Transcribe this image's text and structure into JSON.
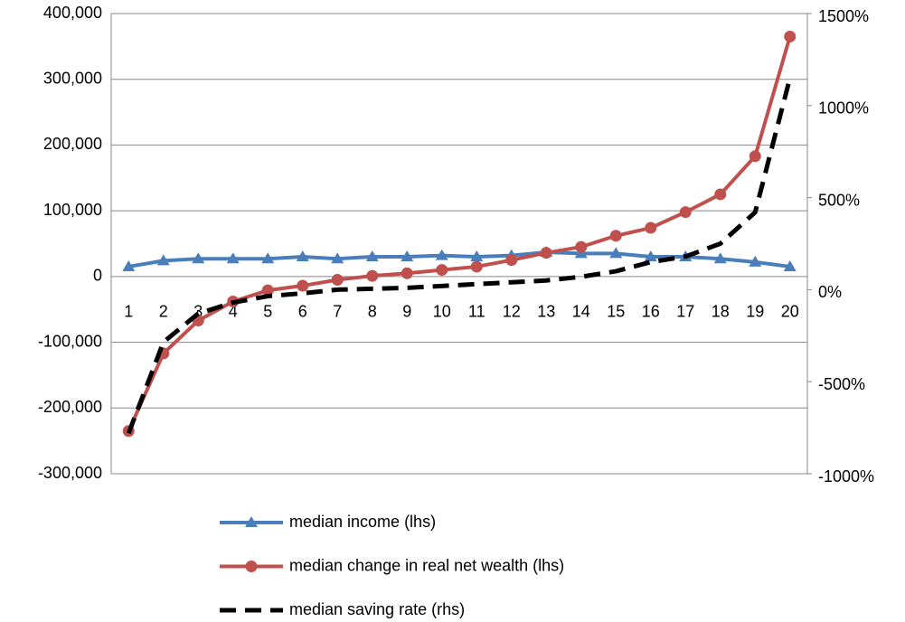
{
  "chart_data": {
    "type": "line",
    "categories": [
      "1",
      "2",
      "3",
      "4",
      "5",
      "6",
      "7",
      "8",
      "9",
      "10",
      "11",
      "12",
      "13",
      "14",
      "15",
      "16",
      "17",
      "18",
      "19",
      "20"
    ],
    "ylim": [
      -300000,
      400000
    ],
    "yticks": [
      {
        "value": -300000,
        "label": "-300,000"
      },
      {
        "value": -200000,
        "label": "-200,000"
      },
      {
        "value": -100000,
        "label": "-100,000"
      },
      0,
      {
        "value": 100000,
        "label": "100,000"
      },
      {
        "value": 200000,
        "label": "200,000"
      },
      {
        "value": 300000,
        "label": "300,000"
      },
      {
        "value": 400000,
        "label": "400,000"
      }
    ],
    "y2lim": [
      -1000,
      1500
    ],
    "y2ticks": [
      {
        "value": -1000,
        "label": "-1000%"
      },
      {
        "value": -500,
        "label": "-500%"
      },
      {
        "value": 0,
        "label": "0%"
      },
      {
        "value": 500,
        "label": "500%"
      },
      {
        "value": 1000,
        "label": "1000%"
      },
      {
        "value": 1500,
        "label": "1500%"
      }
    ],
    "grid": true,
    "legend": "bottom",
    "series": [
      {
        "name": "median income (lhs)",
        "color": "#4a7ebb",
        "marker": "triangle",
        "values": [
          15000,
          24000,
          27000,
          27000,
          27000,
          30000,
          27000,
          30000,
          30000,
          32000,
          30000,
          32000,
          37000,
          35000,
          35000,
          30000,
          30000,
          27000,
          22000,
          15000
        ]
      },
      {
        "name": "median change in real net wealth (lhs)",
        "color": "#c0504d",
        "marker": "circle",
        "values": [
          -235000,
          -117000,
          -67000,
          -38000,
          -21000,
          -14000,
          -5000,
          1000,
          5000,
          10000,
          15000,
          25000,
          36000,
          45000,
          62000,
          74000,
          98000,
          125000,
          183000,
          365000
        ]
      },
      {
        "name": "median saving rate (rhs)",
        "color": "#000000",
        "dashed": true,
        "axis": "y2",
        "values": [
          -780,
          -285,
          -130,
          -70,
          -35,
          -20,
          0,
          5,
          10,
          20,
          30,
          40,
          50,
          70,
          100,
          150,
          180,
          250,
          420,
          1150
        ]
      }
    ]
  }
}
